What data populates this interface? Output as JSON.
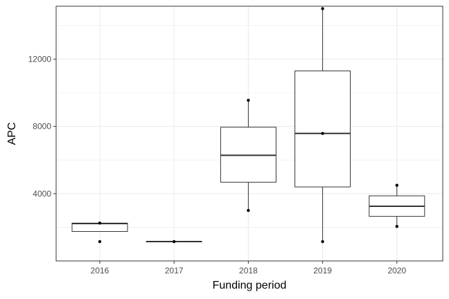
{
  "chart_data": {
    "type": "box",
    "title": "",
    "xlabel": "Funding period",
    "ylabel": "APC",
    "categories": [
      "2016",
      "2017",
      "2018",
      "2019",
      "2020"
    ],
    "yticks": [
      4000,
      8000,
      12000
    ],
    "ylim": [
      0,
      15000
    ],
    "grid": true,
    "boxes": [
      {
        "category": "2016",
        "q1": 1750,
        "median": 2220,
        "q3": 2250,
        "whisker_low": 1750,
        "whisker_high": 2250,
        "points": [
          2250,
          1150
        ]
      },
      {
        "category": "2017",
        "q1": 1150,
        "median": 1150,
        "q3": 1150,
        "whisker_low": 1150,
        "whisker_high": 1150,
        "points": [
          1150
        ]
      },
      {
        "category": "2018",
        "q1": 4680,
        "median": 6280,
        "q3": 7950,
        "whisker_low": 3000,
        "whisker_high": 9550,
        "points": [
          9550,
          3000
        ]
      },
      {
        "category": "2019",
        "q1": 4400,
        "median": 7580,
        "q3": 11300,
        "whisker_low": 1150,
        "whisker_high": 15000,
        "points": [
          15000,
          7580,
          1150
        ]
      },
      {
        "category": "2020",
        "q1": 2650,
        "median": 3250,
        "q3": 3870,
        "whisker_low": 2050,
        "whisker_high": 4500,
        "points": [
          4500,
          2050
        ]
      }
    ],
    "colors": {
      "box_fill": "#ffffff",
      "line": "#333333",
      "grid": "#ebebeb",
      "panel_border": "#333333",
      "point": "#000000"
    }
  }
}
